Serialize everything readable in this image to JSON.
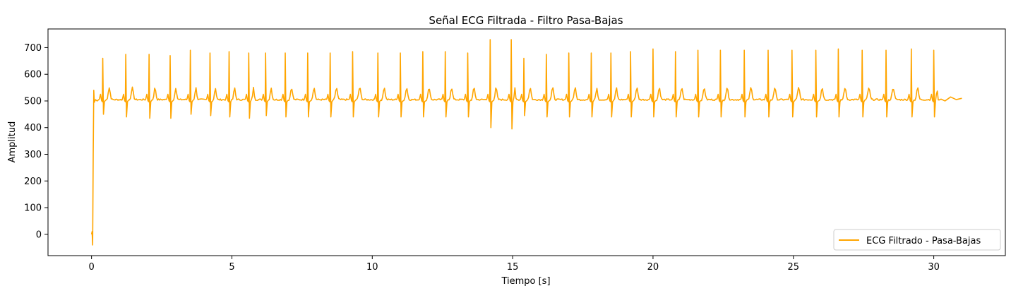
{
  "chart_data": {
    "type": "line",
    "title": "Señal ECG Filtrada - Filtro Pasa-Bajas",
    "xlabel": "Tiempo [s]",
    "ylabel": "Amplitud",
    "xlim": [
      -1.55,
      32.55
    ],
    "ylim": [
      -80,
      770
    ],
    "xticks": [
      0,
      5,
      10,
      15,
      20,
      25,
      30
    ],
    "yticks": [
      0,
      100,
      200,
      300,
      400,
      500,
      600,
      700
    ],
    "grid": false,
    "legend": "lower right",
    "color": "#FFA500",
    "series": [
      {
        "name": "ECG Filtrado - Pasa-Bajas",
        "baseline": 505,
        "onset": [
          [
            0.0,
            0
          ],
          [
            0.02,
            10
          ],
          [
            0.04,
            -40
          ],
          [
            0.06,
            300
          ],
          [
            0.08,
            540
          ],
          [
            0.1,
            495
          ],
          [
            0.14,
            505
          ],
          [
            0.2,
            500
          ]
        ],
        "beats": [
          {
            "t": 0.4,
            "peak": 660,
            "trough": 450
          },
          {
            "t": 1.22,
            "peak": 675,
            "trough": 440
          },
          {
            "t": 2.05,
            "peak": 675,
            "trough": 435
          },
          {
            "t": 2.8,
            "peak": 670,
            "trough": 435
          },
          {
            "t": 3.52,
            "peak": 690,
            "trough": 450
          },
          {
            "t": 4.22,
            "peak": 680,
            "trough": 445
          },
          {
            "t": 4.9,
            "peak": 685,
            "trough": 440
          },
          {
            "t": 5.6,
            "peak": 680,
            "trough": 435
          },
          {
            "t": 6.2,
            "peak": 680,
            "trough": 445
          },
          {
            "t": 6.9,
            "peak": 680,
            "trough": 440
          },
          {
            "t": 7.7,
            "peak": 680,
            "trough": 440
          },
          {
            "t": 8.5,
            "peak": 680,
            "trough": 440
          },
          {
            "t": 9.3,
            "peak": 685,
            "trough": 440
          },
          {
            "t": 10.2,
            "peak": 680,
            "trough": 440
          },
          {
            "t": 11.0,
            "peak": 680,
            "trough": 440
          },
          {
            "t": 11.8,
            "peak": 685,
            "trough": 440
          },
          {
            "t": 12.6,
            "peak": 685,
            "trough": 440
          },
          {
            "t": 13.4,
            "peak": 680,
            "trough": 440
          },
          {
            "t": 14.2,
            "peak": 730,
            "trough": 400
          },
          {
            "t": 14.95,
            "peak": 730,
            "trough": 395
          },
          {
            "t": 15.4,
            "peak": 660,
            "trough": 445
          },
          {
            "t": 16.2,
            "peak": 675,
            "trough": 440
          },
          {
            "t": 17.0,
            "peak": 680,
            "trough": 440
          },
          {
            "t": 17.8,
            "peak": 680,
            "trough": 440
          },
          {
            "t": 18.5,
            "peak": 680,
            "trough": 440
          },
          {
            "t": 19.2,
            "peak": 685,
            "trough": 440
          },
          {
            "t": 20.0,
            "peak": 695,
            "trough": 440
          },
          {
            "t": 20.8,
            "peak": 685,
            "trough": 440
          },
          {
            "t": 21.6,
            "peak": 690,
            "trough": 440
          },
          {
            "t": 22.4,
            "peak": 690,
            "trough": 440
          },
          {
            "t": 23.25,
            "peak": 690,
            "trough": 440
          },
          {
            "t": 24.1,
            "peak": 690,
            "trough": 440
          },
          {
            "t": 24.95,
            "peak": 690,
            "trough": 440
          },
          {
            "t": 25.8,
            "peak": 690,
            "trough": 440
          },
          {
            "t": 26.6,
            "peak": 695,
            "trough": 440
          },
          {
            "t": 27.45,
            "peak": 690,
            "trough": 440
          },
          {
            "t": 28.3,
            "peak": 690,
            "trough": 440
          },
          {
            "t": 29.2,
            "peak": 695,
            "trough": 440
          },
          {
            "t": 30.0,
            "peak": 690,
            "trough": 440
          }
        ],
        "end": [
          [
            30.4,
            500
          ],
          [
            30.6,
            515
          ],
          [
            30.8,
            505
          ],
          [
            31.0,
            510
          ]
        ]
      }
    ]
  }
}
